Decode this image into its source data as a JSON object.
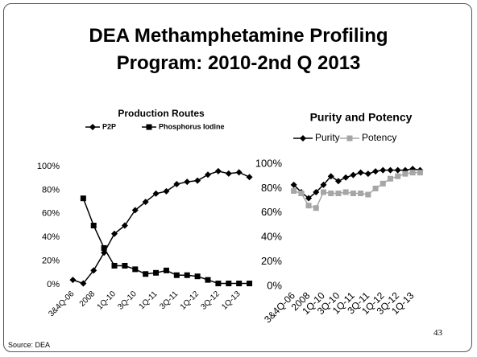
{
  "title": "DEA Methamphetamine Profiling Program: 2010-2nd Q 2013",
  "source": "Source: DEA",
  "page_number": "43",
  "chart_data": [
    {
      "type": "line",
      "title": "Production Routes",
      "categories": [
        "3&4Q-06",
        null,
        "2008",
        null,
        "1Q-10",
        null,
        "3Q-10",
        null,
        "1Q-11",
        null,
        "3Q-11",
        null,
        "1Q-12",
        null,
        "3Q-12",
        null,
        "1Q-13",
        null
      ],
      "series": [
        {
          "name": "P2P",
          "color": "#000000",
          "marker": "diamond",
          "values": [
            4,
            1,
            12,
            27,
            43,
            50,
            63,
            70,
            77,
            79,
            85,
            87,
            88,
            93,
            96,
            94,
            95,
            91
          ]
        },
        {
          "name": "Phosphorus Iodine",
          "color": "#000000",
          "marker": "square",
          "values": [
            null,
            73,
            50,
            31,
            16,
            16,
            13,
            9,
            10,
            12,
            8,
            8,
            7,
            4,
            1,
            1,
            1,
            1
          ]
        }
      ],
      "ylim": [
        0,
        100
      ],
      "yticks": [
        {
          "value": 0,
          "label": "0%"
        },
        {
          "value": 20,
          "label": "20%"
        },
        {
          "value": 40,
          "label": "40%"
        },
        {
          "value": 60,
          "label": "60%"
        },
        {
          "value": 80,
          "label": "80%"
        },
        {
          "value": 100,
          "label": "100%"
        }
      ],
      "legend": "top"
    },
    {
      "type": "line",
      "title": "Purity and Potency",
      "categories": [
        "3&4Q-06",
        null,
        "2008",
        null,
        "1Q-10",
        null,
        "3Q-10",
        null,
        "1Q-11",
        null,
        "3Q-11",
        null,
        "1Q-12",
        null,
        "3Q-12",
        null,
        "1Q-13",
        null
      ],
      "series": [
        {
          "name": "Purity",
          "color": "#000000",
          "marker": "diamond",
          "values": [
            83,
            77,
            72,
            77,
            83,
            90,
            86,
            89,
            91,
            93,
            92,
            94,
            95,
            95,
            95,
            95,
            96,
            95
          ]
        },
        {
          "name": "Potency",
          "color": "#a6a6a6",
          "marker": "square",
          "values": [
            78,
            76,
            66,
            64,
            77,
            76,
            76,
            77,
            76,
            76,
            75,
            80,
            84,
            88,
            90,
            92,
            93,
            93
          ]
        }
      ],
      "ylim": [
        0,
        100
      ],
      "yticks": [
        {
          "value": 0,
          "label": "0%"
        },
        {
          "value": 20,
          "label": "20%"
        },
        {
          "value": 40,
          "label": "40%"
        },
        {
          "value": 60,
          "label": "60%"
        },
        {
          "value": 80,
          "label": "80%"
        },
        {
          "value": 100,
          "label": "100%"
        }
      ],
      "legend": "top"
    }
  ]
}
